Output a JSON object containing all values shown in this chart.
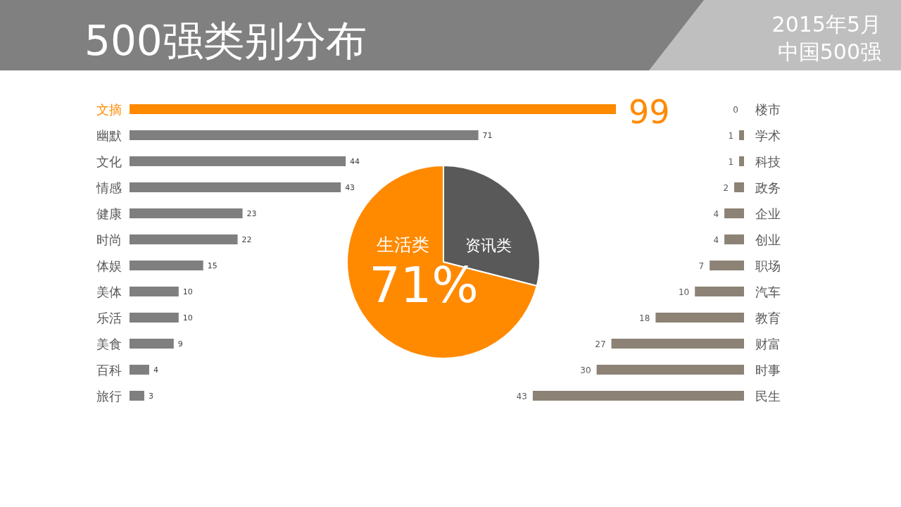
{
  "chart_data": [
    {
      "type": "bar",
      "orientation": "horizontal",
      "title": "500强类别分布",
      "categories": [
        "文摘",
        "幽默",
        "文化",
        "情感",
        "健康",
        "时尚",
        "体娱",
        "美体",
        "乐活",
        "美食",
        "百科",
        "旅行"
      ],
      "values": [
        99,
        71,
        44,
        43,
        23,
        22,
        15,
        10,
        10,
        9,
        4,
        3
      ],
      "colors": [
        "#ff8a00",
        "#7f7f7f",
        "#7f7f7f",
        "#7f7f7f",
        "#7f7f7f",
        "#7f7f7f",
        "#7f7f7f",
        "#7f7f7f",
        "#7f7f7f",
        "#7f7f7f",
        "#7f7f7f",
        "#7f7f7f"
      ],
      "data_labels": true
    },
    {
      "type": "pie",
      "categories": [
        "资讯类",
        "生活类"
      ],
      "values": [
        29,
        71
      ],
      "colors": [
        "#595959",
        "#ff8a00"
      ],
      "value_labels": [
        null,
        "71%"
      ]
    },
    {
      "type": "bar",
      "orientation": "horizontal",
      "subtitle": "2015年5月",
      "annotations": [
        "中国500强"
      ],
      "categories": [
        "楼市",
        "学术",
        "科技",
        "政务",
        "企业",
        "创业",
        "职场",
        "汽车",
        "教育",
        "财富",
        "时事",
        "民生"
      ],
      "values": [
        0,
        1,
        1,
        2,
        4,
        4,
        7,
        10,
        18,
        27,
        30,
        43
      ],
      "color": "#8c8275",
      "data_labels": true
    }
  ]
}
